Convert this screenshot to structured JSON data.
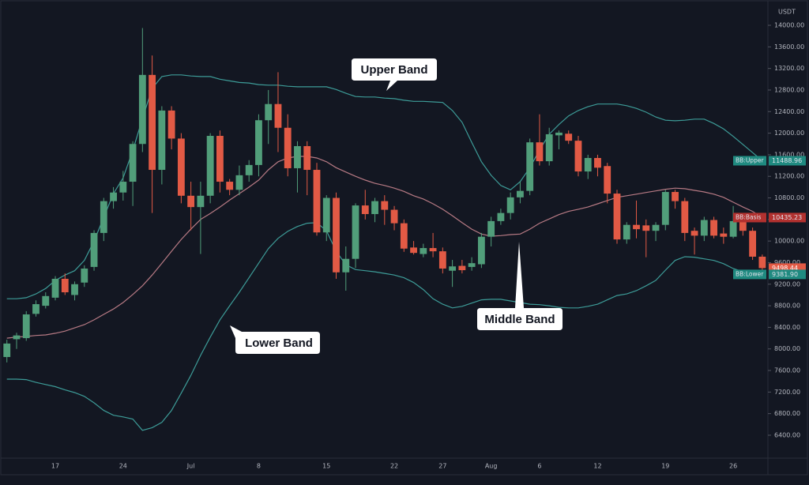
{
  "chart_data": {
    "type": "candlestick",
    "axis_unit": "USDT",
    "up_color": "#519e7a",
    "down_color": "#e25a45",
    "grid": false,
    "ylim": [
      5975,
      14469
    ],
    "yticks": [
      {
        "value": 6400,
        "label": "6400.00"
      },
      {
        "value": 6800,
        "label": "6800.00"
      },
      {
        "value": 7200,
        "label": "7200.00"
      },
      {
        "value": 7600,
        "label": "7600.00"
      },
      {
        "value": 8000,
        "label": "8000.00"
      },
      {
        "value": 8400,
        "label": "8400.00"
      },
      {
        "value": 8800,
        "label": "8800.00"
      },
      {
        "value": 9200,
        "label": "9200.00"
      },
      {
        "value": 9600,
        "label": "9600.00"
      },
      {
        "value": 10000,
        "label": "10000.00"
      },
      {
        "value": 10400,
        "label": "10400.00"
      },
      {
        "value": 10800,
        "label": "10800.00"
      },
      {
        "value": 11200,
        "label": "11200.00"
      },
      {
        "value": 11600,
        "label": "11600.00"
      },
      {
        "value": 12000,
        "label": "12000.00"
      },
      {
        "value": 12400,
        "label": "12400.00"
      },
      {
        "value": 12800,
        "label": "12800.00"
      },
      {
        "value": 13200,
        "label": "13200.00"
      },
      {
        "value": 13600,
        "label": "13600.00"
      },
      {
        "value": 14000,
        "label": "14000.00"
      }
    ],
    "categories": [
      null,
      null,
      null,
      null,
      null,
      "17",
      null,
      null,
      null,
      null,
      null,
      null,
      "24",
      null,
      null,
      null,
      null,
      null,
      null,
      "Jul",
      null,
      null,
      null,
      null,
      null,
      null,
      "8",
      null,
      null,
      null,
      null,
      null,
      null,
      "15",
      null,
      null,
      null,
      null,
      null,
      null,
      "22",
      null,
      null,
      null,
      null,
      "27",
      null,
      null,
      null,
      null,
      "Aug",
      null,
      null,
      null,
      null,
      "6",
      null,
      null,
      null,
      null,
      null,
      "12",
      null,
      null,
      null,
      null,
      null,
      null,
      "19",
      null,
      null,
      null,
      null,
      null,
      null,
      "26",
      null,
      null,
      null
    ],
    "open": [
      7850,
      8180,
      8200,
      8650,
      8800,
      8950,
      9300,
      9000,
      9230,
      9520,
      10150,
      10740,
      10900,
      11100,
      11800,
      13080,
      11320,
      12420,
      11900,
      10840,
      10630,
      10840,
      11950,
      11100,
      10950,
      11220,
      11410,
      12240,
      12540,
      12100,
      11350,
      11760,
      11320,
      10160,
      10800,
      9420,
      9670,
      10660,
      10500,
      10740,
      10580,
      10330,
      9880,
      9760,
      9870,
      9810,
      9450,
      9540,
      9520,
      9570,
      10080,
      10370,
      10520,
      10810,
      10930,
      11830,
      11480,
      11960,
      11990,
      11860,
      11290,
      11540,
      11390,
      10880,
      10030,
      10300,
      10290,
      10190,
      10300,
      10910,
      10740,
      10190,
      10100,
      10390,
      10140,
      10080,
      10370,
      10190,
      9710
    ],
    "high": [
      8170,
      8300,
      8700,
      8900,
      9050,
      9350,
      9400,
      9250,
      9550,
      10200,
      10800,
      11000,
      11300,
      11850,
      13950,
      13440,
      12500,
      12500,
      12000,
      11100,
      11100,
      12000,
      12050,
      11150,
      11400,
      11500,
      12350,
      12800,
      13130,
      12350,
      11850,
      11850,
      11450,
      10850,
      10900,
      9900,
      10700,
      10950,
      10800,
      10850,
      10650,
      10400,
      10000,
      9950,
      10150,
      9880,
      9650,
      9650,
      9700,
      10150,
      10450,
      10600,
      10900,
      11100,
      11900,
      12350,
      12100,
      12050,
      12050,
      11950,
      11600,
      11600,
      11450,
      10950,
      10350,
      10750,
      10400,
      10350,
      10950,
      10950,
      10800,
      10250,
      10450,
      10450,
      10250,
      10650,
      10450,
      10250,
      9750
    ],
    "low": [
      7750,
      8000,
      8150,
      8600,
      8750,
      8900,
      9000,
      8900,
      9150,
      9450,
      10000,
      10600,
      10750,
      10650,
      11650,
      10520,
      11050,
      11700,
      10700,
      10200,
      9760,
      10700,
      10900,
      10850,
      10850,
      11100,
      11200,
      11800,
      11650,
      11200,
      10900,
      10850,
      10100,
      10000,
      9300,
      9080,
      9500,
      10400,
      10350,
      10300,
      10200,
      9800,
      9750,
      9700,
      9700,
      9400,
      9150,
      9400,
      9450,
      9500,
      9900,
      10300,
      10400,
      10700,
      10850,
      11400,
      11400,
      11700,
      11800,
      11200,
      11150,
      11200,
      10700,
      9950,
      9950,
      10050,
      9700,
      10000,
      10200,
      10600,
      10000,
      9750,
      10000,
      10050,
      9950,
      10050,
      10100,
      9650,
      9450
    ],
    "close": [
      8100,
      8250,
      8640,
      8830,
      8980,
      9300,
      9050,
      9200,
      9490,
      10150,
      10740,
      10900,
      11100,
      11800,
      13080,
      11320,
      12420,
      11900,
      10840,
      10630,
      10840,
      11950,
      11100,
      10950,
      11220,
      11410,
      12240,
      12540,
      12100,
      11350,
      11760,
      11320,
      10160,
      10800,
      9420,
      9670,
      10660,
      10500,
      10740,
      10580,
      10330,
      9860,
      9780,
      9870,
      9810,
      9490,
      9530,
      9460,
      9590,
      10080,
      10370,
      10520,
      10810,
      10930,
      11830,
      11480,
      11980,
      12010,
      11860,
      11290,
      11540,
      11360,
      10880,
      10030,
      10300,
      10220,
      10190,
      10300,
      10910,
      10740,
      10150,
      10100,
      10390,
      10100,
      10080,
      10370,
      10190,
      9710,
      9498.44
    ],
    "last_price_label": "9498.44",
    "bands": [
      {
        "name": "BB:Upper",
        "color": "#3d9c98",
        "value_label": "11488.96",
        "values": [
          8930,
          8930,
          8950,
          9020,
          9120,
          9270,
          9370,
          9450,
          9640,
          10000,
          10440,
          10880,
          11170,
          11680,
          12270,
          12830,
          13050,
          13080,
          13080,
          13060,
          13050,
          13050,
          13000,
          12970,
          12940,
          12930,
          12900,
          12890,
          12890,
          12870,
          12860,
          12860,
          12860,
          12860,
          12810,
          12740,
          12680,
          12670,
          12670,
          12650,
          12640,
          12610,
          12590,
          12590,
          12580,
          12570,
          12420,
          12200,
          11830,
          11470,
          11220,
          11030,
          10950,
          11100,
          11360,
          11690,
          11980,
          12160,
          12320,
          12420,
          12490,
          12540,
          12540,
          12540,
          12510,
          12460,
          12390,
          12300,
          12240,
          12230,
          12240,
          12260,
          12260,
          12180,
          12080,
          11940,
          11790,
          11640,
          11488.96
        ]
      },
      {
        "name": "BB:Basis",
        "color": "#b77a84",
        "value_label": "10435.23",
        "values": [
          8200,
          8220,
          8230,
          8250,
          8260,
          8290,
          8330,
          8390,
          8450,
          8540,
          8640,
          8740,
          8860,
          9010,
          9170,
          9370,
          9590,
          9810,
          10030,
          10220,
          10400,
          10510,
          10630,
          10760,
          10880,
          11000,
          11130,
          11320,
          11470,
          11540,
          11570,
          11570,
          11540,
          11470,
          11360,
          11280,
          11200,
          11130,
          11070,
          11030,
          10980,
          10920,
          10840,
          10780,
          10690,
          10590,
          10470,
          10340,
          10220,
          10130,
          10090,
          10100,
          10120,
          10130,
          10220,
          10330,
          10410,
          10490,
          10550,
          10590,
          10630,
          10690,
          10750,
          10810,
          10840,
          10870,
          10900,
          10930,
          10960,
          10980,
          10970,
          10940,
          10910,
          10870,
          10810,
          10720,
          10630,
          10550,
          10435.23
        ]
      },
      {
        "name": "BB:Lower",
        "color": "#3d9c98",
        "value_label": "9381.90",
        "values": [
          7440,
          7440,
          7430,
          7380,
          7340,
          7300,
          7240,
          7190,
          7120,
          7000,
          6860,
          6770,
          6740,
          6700,
          6490,
          6540,
          6640,
          6860,
          7180,
          7510,
          7880,
          8220,
          8540,
          8800,
          9050,
          9320,
          9590,
          9860,
          10050,
          10180,
          10270,
          10330,
          10340,
          10190,
          9810,
          9560,
          9470,
          9450,
          9430,
          9400,
          9370,
          9320,
          9230,
          9100,
          8930,
          8830,
          8760,
          8790,
          8850,
          8910,
          8920,
          8920,
          8890,
          8860,
          8830,
          8820,
          8800,
          8770,
          8760,
          8760,
          8790,
          8830,
          8910,
          8990,
          9020,
          9080,
          9170,
          9270,
          9460,
          9640,
          9710,
          9700,
          9670,
          9640,
          9580,
          9490,
          9430,
          9400,
          9381.9
        ]
      }
    ],
    "annotations": [
      "Upper Band",
      "Middle Band",
      "Lower Band"
    ]
  }
}
